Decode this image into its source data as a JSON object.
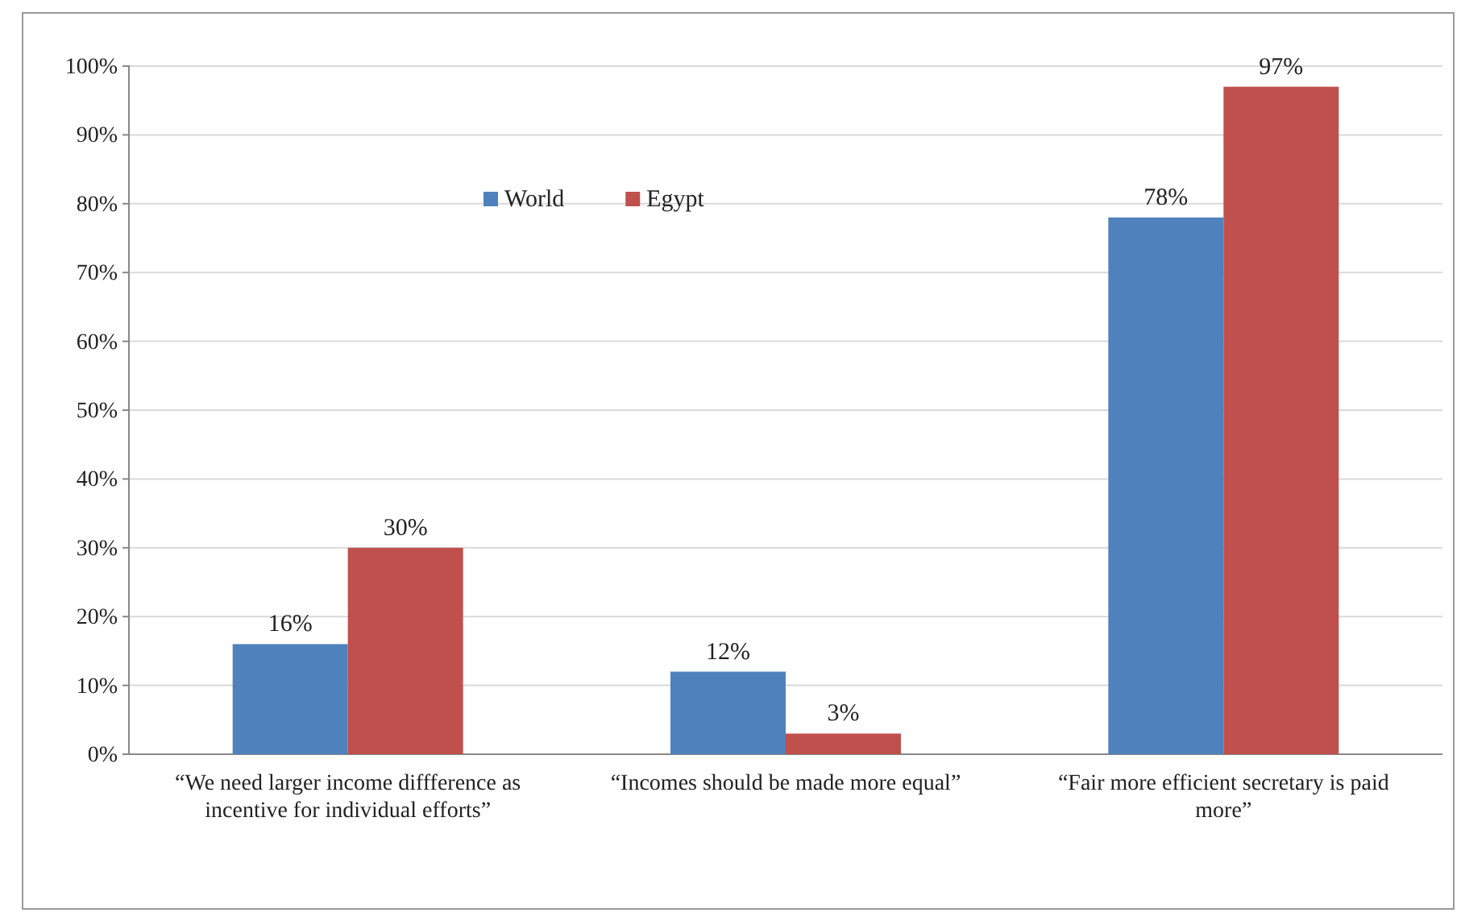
{
  "chart_data": {
    "type": "bar",
    "categories": [
      "“We need larger income diffference as incentive for individual efforts”",
      "“Incomes should be made more equal”",
      "“Fair more efficient secretary is paid more”"
    ],
    "series": [
      {
        "name": "World",
        "color": "#4f81bd",
        "values": [
          16,
          12,
          78
        ],
        "value_labels": [
          "16%",
          "12%",
          "78%"
        ]
      },
      {
        "name": "Egypt",
        "color": "#c0504d",
        "values": [
          30,
          3,
          97
        ],
        "value_labels": [
          "30%",
          "3%",
          "97%"
        ]
      }
    ],
    "ylim": [
      0,
      100
    ],
    "yticks": [
      {
        "value": 0,
        "label": "0%"
      },
      {
        "value": 10,
        "label": "10%"
      },
      {
        "value": 20,
        "label": "20%"
      },
      {
        "value": 30,
        "label": "30%"
      },
      {
        "value": 40,
        "label": "40%"
      },
      {
        "value": 50,
        "label": "50%"
      },
      {
        "value": 60,
        "label": "60%"
      },
      {
        "value": 70,
        "label": "70%"
      },
      {
        "value": 80,
        "label": "80%"
      },
      {
        "value": 90,
        "label": "90%"
      },
      {
        "value": 100,
        "label": "100%"
      }
    ],
    "grid": "y",
    "legend": "top"
  }
}
